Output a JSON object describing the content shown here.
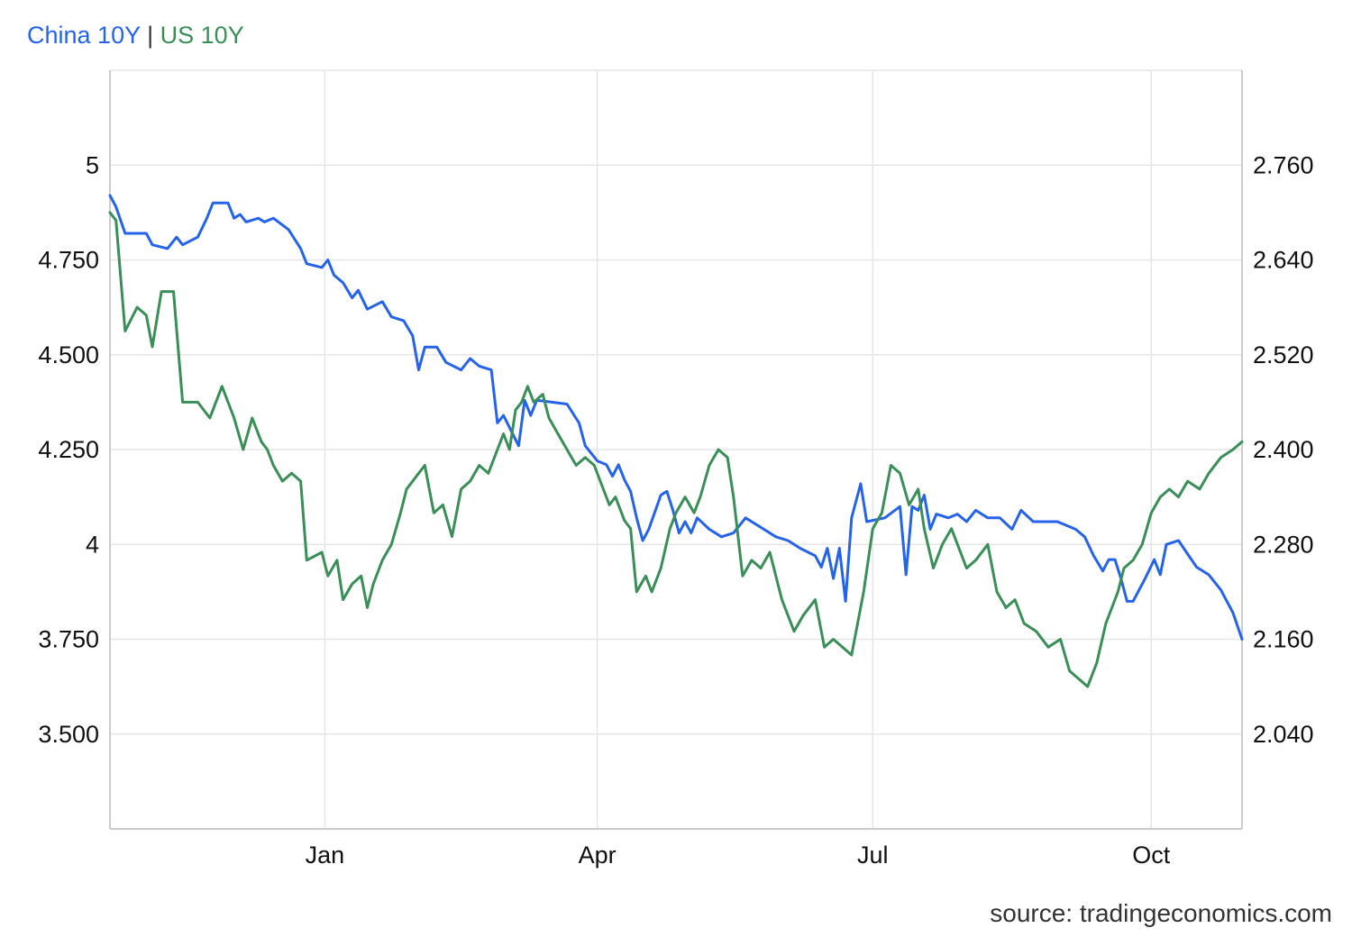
{
  "legend": {
    "china_label": "China 10Y",
    "separator": "|",
    "us_label": "US 10Y"
  },
  "source": "source: tradingeconomics.com",
  "colors": {
    "china": "#2563eb",
    "us": "#3a8e57",
    "grid": "#e6e6e6",
    "axis": "#cccccc"
  },
  "chart_data": {
    "type": "line",
    "title": "",
    "grid": true,
    "legend_position": "top-left",
    "x_ticks": [
      "Jan",
      "Apr",
      "Jul",
      "Oct"
    ],
    "x_tick_dates": [
      "2017-01-01",
      "2017-04-01",
      "2017-07-01",
      "2017-10-01"
    ],
    "xlim": [
      "2016-10-22",
      "2017-10-31"
    ],
    "y_left": {
      "ticks": [
        "5",
        "4.750",
        "4.500",
        "4.250",
        "4",
        "3.750",
        "3.500"
      ],
      "tick_values": [
        5,
        4.75,
        4.5,
        4.25,
        4,
        3.75,
        3.5
      ],
      "ylim": [
        3.25,
        5.25
      ]
    },
    "y_right": {
      "ticks": [
        "2.760",
        "2.640",
        "2.520",
        "2.400",
        "2.280",
        "2.160",
        "2.040"
      ],
      "tick_values": [
        2.76,
        2.64,
        2.52,
        2.4,
        2.28,
        2.16,
        2.04
      ],
      "ylim": [
        1.92,
        2.88
      ]
    },
    "series": [
      {
        "name": "China 10Y",
        "axis": "left",
        "points": [
          [
            "2016-10-22",
            4.92
          ],
          [
            "2016-10-24",
            4.89
          ],
          [
            "2016-10-27",
            4.82
          ],
          [
            "2016-10-31",
            4.82
          ],
          [
            "2016-11-03",
            4.82
          ],
          [
            "2016-11-05",
            4.79
          ],
          [
            "2016-11-10",
            4.78
          ],
          [
            "2016-11-13",
            4.81
          ],
          [
            "2016-11-15",
            4.79
          ],
          [
            "2016-11-20",
            4.81
          ],
          [
            "2016-11-23",
            4.86
          ],
          [
            "2016-11-25",
            4.9
          ],
          [
            "2016-11-30",
            4.9
          ],
          [
            "2016-12-02",
            4.86
          ],
          [
            "2016-12-04",
            4.87
          ],
          [
            "2016-12-06",
            4.85
          ],
          [
            "2016-12-10",
            4.86
          ],
          [
            "2016-12-12",
            4.85
          ],
          [
            "2016-12-15",
            4.86
          ],
          [
            "2016-12-20",
            4.83
          ],
          [
            "2016-12-24",
            4.78
          ],
          [
            "2016-12-26",
            4.74
          ],
          [
            "2016-12-31",
            4.73
          ],
          [
            "2017-01-02",
            4.75
          ],
          [
            "2017-01-04",
            4.71
          ],
          [
            "2017-01-07",
            4.69
          ],
          [
            "2017-01-10",
            4.65
          ],
          [
            "2017-01-12",
            4.67
          ],
          [
            "2017-01-15",
            4.62
          ],
          [
            "2017-01-20",
            4.64
          ],
          [
            "2017-01-23",
            4.6
          ],
          [
            "2017-01-27",
            4.59
          ],
          [
            "2017-01-30",
            4.55
          ],
          [
            "2017-02-01",
            4.46
          ],
          [
            "2017-02-03",
            4.52
          ],
          [
            "2017-02-07",
            4.52
          ],
          [
            "2017-02-10",
            4.48
          ],
          [
            "2017-02-15",
            4.46
          ],
          [
            "2017-02-18",
            4.49
          ],
          [
            "2017-02-21",
            4.47
          ],
          [
            "2017-02-25",
            4.46
          ],
          [
            "2017-02-27",
            4.32
          ],
          [
            "2017-03-01",
            4.34
          ],
          [
            "2017-03-06",
            4.26
          ],
          [
            "2017-03-08",
            4.38
          ],
          [
            "2017-03-10",
            4.34
          ],
          [
            "2017-03-12",
            4.38
          ],
          [
            "2017-03-22",
            4.37
          ],
          [
            "2017-03-26",
            4.32
          ],
          [
            "2017-03-28",
            4.26
          ],
          [
            "2017-04-01",
            4.22
          ],
          [
            "2017-04-04",
            4.21
          ],
          [
            "2017-04-06",
            4.18
          ],
          [
            "2017-04-08",
            4.21
          ],
          [
            "2017-04-10",
            4.17
          ],
          [
            "2017-04-12",
            4.14
          ],
          [
            "2017-04-14",
            4.07
          ],
          [
            "2017-04-16",
            4.01
          ],
          [
            "2017-04-18",
            4.04
          ],
          [
            "2017-04-22",
            4.13
          ],
          [
            "2017-04-24",
            4.14
          ],
          [
            "2017-04-26",
            4.09
          ],
          [
            "2017-04-28",
            4.03
          ],
          [
            "2017-04-30",
            4.06
          ],
          [
            "2017-05-02",
            4.03
          ],
          [
            "2017-05-04",
            4.07
          ],
          [
            "2017-05-08",
            4.04
          ],
          [
            "2017-05-12",
            4.02
          ],
          [
            "2017-05-16",
            4.03
          ],
          [
            "2017-05-20",
            4.07
          ],
          [
            "2017-05-26",
            4.04
          ],
          [
            "2017-05-30",
            4.02
          ],
          [
            "2017-06-03",
            4.01
          ],
          [
            "2017-06-07",
            3.99
          ],
          [
            "2017-06-12",
            3.97
          ],
          [
            "2017-06-14",
            3.94
          ],
          [
            "2017-06-16",
            3.99
          ],
          [
            "2017-06-18",
            3.91
          ],
          [
            "2017-06-20",
            3.99
          ],
          [
            "2017-06-22",
            3.85
          ],
          [
            "2017-06-24",
            4.07
          ],
          [
            "2017-06-27",
            4.16
          ],
          [
            "2017-06-29",
            4.06
          ],
          [
            "2017-07-05",
            4.07
          ],
          [
            "2017-07-10",
            4.1
          ],
          [
            "2017-07-12",
            3.92
          ],
          [
            "2017-07-14",
            4.1
          ],
          [
            "2017-07-16",
            4.09
          ],
          [
            "2017-07-18",
            4.13
          ],
          [
            "2017-07-20",
            4.04
          ],
          [
            "2017-07-22",
            4.08
          ],
          [
            "2017-07-26",
            4.07
          ],
          [
            "2017-07-29",
            4.08
          ],
          [
            "2017-08-01",
            4.06
          ],
          [
            "2017-08-04",
            4.09
          ],
          [
            "2017-08-08",
            4.07
          ],
          [
            "2017-08-12",
            4.07
          ],
          [
            "2017-08-16",
            4.04
          ],
          [
            "2017-08-19",
            4.09
          ],
          [
            "2017-08-23",
            4.06
          ],
          [
            "2017-08-26",
            4.06
          ],
          [
            "2017-08-31",
            4.06
          ],
          [
            "2017-09-06",
            4.04
          ],
          [
            "2017-09-09",
            4.02
          ],
          [
            "2017-09-12",
            3.97
          ],
          [
            "2017-09-15",
            3.93
          ],
          [
            "2017-09-17",
            3.96
          ],
          [
            "2017-09-19",
            3.96
          ],
          [
            "2017-09-21",
            3.91
          ],
          [
            "2017-09-23",
            3.85
          ],
          [
            "2017-09-25",
            3.85
          ],
          [
            "2017-09-29",
            3.91
          ],
          [
            "2017-10-02",
            3.96
          ],
          [
            "2017-10-04",
            3.92
          ],
          [
            "2017-10-06",
            4.0
          ],
          [
            "2017-10-10",
            4.01
          ],
          [
            "2017-10-16",
            3.94
          ],
          [
            "2017-10-20",
            3.92
          ],
          [
            "2017-10-24",
            3.88
          ],
          [
            "2017-10-28",
            3.82
          ],
          [
            "2017-10-31",
            3.75
          ]
        ]
      },
      {
        "name": "US 10Y",
        "axis": "right",
        "points": [
          [
            "2016-10-22",
            2.7
          ],
          [
            "2016-10-24",
            2.69
          ],
          [
            "2016-10-27",
            2.55
          ],
          [
            "2016-10-31",
            2.58
          ],
          [
            "2016-11-03",
            2.57
          ],
          [
            "2016-11-05",
            2.53
          ],
          [
            "2016-11-08",
            2.6
          ],
          [
            "2016-11-12",
            2.6
          ],
          [
            "2016-11-15",
            2.46
          ],
          [
            "2016-11-17",
            2.46
          ],
          [
            "2016-11-20",
            2.46
          ],
          [
            "2016-11-24",
            2.44
          ],
          [
            "2016-11-28",
            2.48
          ],
          [
            "2016-12-02",
            2.44
          ],
          [
            "2016-12-05",
            2.4
          ],
          [
            "2016-12-08",
            2.44
          ],
          [
            "2016-12-11",
            2.41
          ],
          [
            "2016-12-13",
            2.4
          ],
          [
            "2016-12-15",
            2.38
          ],
          [
            "2016-12-18",
            2.36
          ],
          [
            "2016-12-21",
            2.37
          ],
          [
            "2016-12-24",
            2.36
          ],
          [
            "2016-12-26",
            2.26
          ],
          [
            "2016-12-31",
            2.27
          ],
          [
            "2017-01-02",
            2.24
          ],
          [
            "2017-01-05",
            2.26
          ],
          [
            "2017-01-07",
            2.21
          ],
          [
            "2017-01-10",
            2.23
          ],
          [
            "2017-01-13",
            2.24
          ],
          [
            "2017-01-15",
            2.2
          ],
          [
            "2017-01-17",
            2.23
          ],
          [
            "2017-01-20",
            2.26
          ],
          [
            "2017-01-23",
            2.28
          ],
          [
            "2017-01-26",
            2.32
          ],
          [
            "2017-01-28",
            2.35
          ],
          [
            "2017-02-01",
            2.37
          ],
          [
            "2017-02-03",
            2.38
          ],
          [
            "2017-02-06",
            2.32
          ],
          [
            "2017-02-09",
            2.33
          ],
          [
            "2017-02-12",
            2.29
          ],
          [
            "2017-02-15",
            2.35
          ],
          [
            "2017-02-18",
            2.36
          ],
          [
            "2017-02-21",
            2.38
          ],
          [
            "2017-02-24",
            2.37
          ],
          [
            "2017-02-27",
            2.4
          ],
          [
            "2017-03-01",
            2.42
          ],
          [
            "2017-03-03",
            2.4
          ],
          [
            "2017-03-05",
            2.45
          ],
          [
            "2017-03-07",
            2.46
          ],
          [
            "2017-03-09",
            2.48
          ],
          [
            "2017-03-11",
            2.46
          ],
          [
            "2017-03-14",
            2.47
          ],
          [
            "2017-03-16",
            2.44
          ],
          [
            "2017-03-19",
            2.42
          ],
          [
            "2017-03-22",
            2.4
          ],
          [
            "2017-03-25",
            2.38
          ],
          [
            "2017-03-28",
            2.39
          ],
          [
            "2017-03-31",
            2.38
          ],
          [
            "2017-04-02",
            2.36
          ],
          [
            "2017-04-05",
            2.33
          ],
          [
            "2017-04-07",
            2.34
          ],
          [
            "2017-04-10",
            2.31
          ],
          [
            "2017-04-12",
            2.3
          ],
          [
            "2017-04-14",
            2.22
          ],
          [
            "2017-04-17",
            2.24
          ],
          [
            "2017-04-19",
            2.22
          ],
          [
            "2017-04-22",
            2.25
          ],
          [
            "2017-04-25",
            2.3
          ],
          [
            "2017-04-27",
            2.32
          ],
          [
            "2017-04-30",
            2.34
          ],
          [
            "2017-05-03",
            2.32
          ],
          [
            "2017-05-05",
            2.34
          ],
          [
            "2017-05-08",
            2.38
          ],
          [
            "2017-05-11",
            2.4
          ],
          [
            "2017-05-14",
            2.39
          ],
          [
            "2017-05-16",
            2.34
          ],
          [
            "2017-05-19",
            2.24
          ],
          [
            "2017-05-22",
            2.26
          ],
          [
            "2017-05-25",
            2.25
          ],
          [
            "2017-05-28",
            2.27
          ],
          [
            "2017-06-01",
            2.21
          ],
          [
            "2017-06-05",
            2.17
          ],
          [
            "2017-06-08",
            2.19
          ],
          [
            "2017-06-12",
            2.21
          ],
          [
            "2017-06-15",
            2.15
          ],
          [
            "2017-06-18",
            2.16
          ],
          [
            "2017-06-21",
            2.15
          ],
          [
            "2017-06-24",
            2.14
          ],
          [
            "2017-06-28",
            2.22
          ],
          [
            "2017-07-01",
            2.3
          ],
          [
            "2017-07-04",
            2.32
          ],
          [
            "2017-07-07",
            2.38
          ],
          [
            "2017-07-10",
            2.37
          ],
          [
            "2017-07-13",
            2.33
          ],
          [
            "2017-07-16",
            2.35
          ],
          [
            "2017-07-18",
            2.3
          ],
          [
            "2017-07-21",
            2.25
          ],
          [
            "2017-07-24",
            2.28
          ],
          [
            "2017-07-27",
            2.3
          ],
          [
            "2017-08-01",
            2.25
          ],
          [
            "2017-08-04",
            2.26
          ],
          [
            "2017-08-08",
            2.28
          ],
          [
            "2017-08-11",
            2.22
          ],
          [
            "2017-08-14",
            2.2
          ],
          [
            "2017-08-17",
            2.21
          ],
          [
            "2017-08-20",
            2.18
          ],
          [
            "2017-08-24",
            2.17
          ],
          [
            "2017-08-28",
            2.15
          ],
          [
            "2017-09-01",
            2.16
          ],
          [
            "2017-09-04",
            2.12
          ],
          [
            "2017-09-07",
            2.11
          ],
          [
            "2017-09-10",
            2.1
          ],
          [
            "2017-09-13",
            2.13
          ],
          [
            "2017-09-16",
            2.18
          ],
          [
            "2017-09-20",
            2.22
          ],
          [
            "2017-09-22",
            2.25
          ],
          [
            "2017-09-25",
            2.26
          ],
          [
            "2017-09-28",
            2.28
          ],
          [
            "2017-10-01",
            2.32
          ],
          [
            "2017-10-04",
            2.34
          ],
          [
            "2017-10-07",
            2.35
          ],
          [
            "2017-10-10",
            2.34
          ],
          [
            "2017-10-13",
            2.36
          ],
          [
            "2017-10-17",
            2.35
          ],
          [
            "2017-10-20",
            2.37
          ],
          [
            "2017-10-24",
            2.39
          ],
          [
            "2017-10-28",
            2.4
          ],
          [
            "2017-10-31",
            2.41
          ]
        ]
      }
    ]
  }
}
